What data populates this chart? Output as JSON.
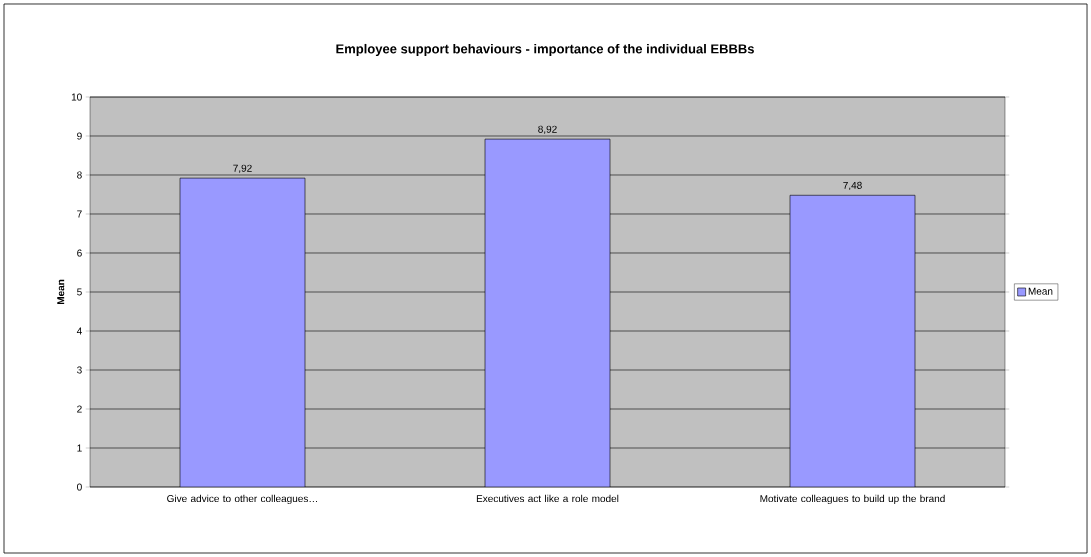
{
  "chart_data": {
    "type": "bar",
    "title": "Employee support behaviours - importance of the individual EBBBs",
    "ylabel": "Mean",
    "categories": [
      "Give advice to other colleagues…",
      "Executives act like a role model",
      "Motivate colleagues to build up the brand"
    ],
    "series": [
      {
        "name": "Mean",
        "color": "#9999ff",
        "values": [
          7.92,
          8.92,
          7.48
        ],
        "value_labels": [
          "7,92",
          "8,92",
          "7,48"
        ]
      }
    ],
    "ylim": [
      0,
      10
    ],
    "yticks": [
      0,
      1,
      2,
      3,
      4,
      5,
      6,
      7,
      8,
      9,
      10
    ],
    "grid": "y",
    "legend": "right"
  }
}
